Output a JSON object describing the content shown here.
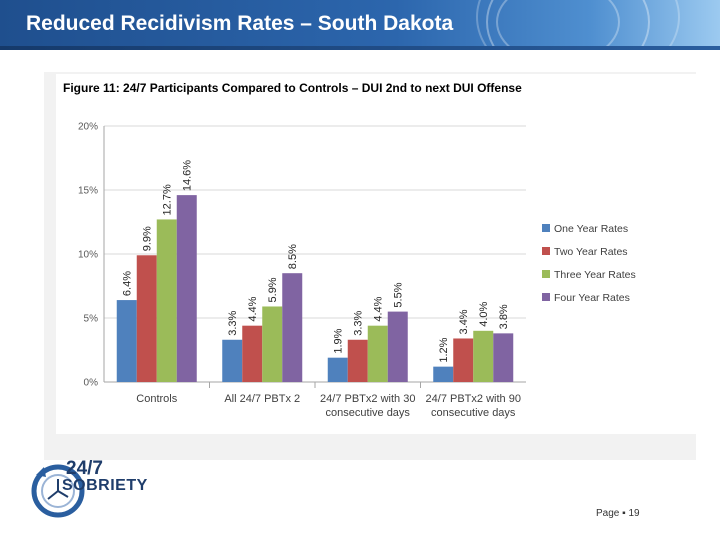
{
  "header": {
    "title": "Reduced Recidivism Rates – South Dakota"
  },
  "chart_data": {
    "type": "bar",
    "title": "Figure 11: 24/7 Participants Compared to Controls – DUI 2nd to next DUI Offense",
    "categories": [
      [
        "Controls"
      ],
      [
        "All 24/7 PBTx 2"
      ],
      [
        "24/7 PBTx2 with 30",
        "consecutive days"
      ],
      [
        "24/7 PBTx2 with 90",
        "consecutive days"
      ]
    ],
    "series": [
      {
        "name": "One Year Rates",
        "color": "#4f81bd",
        "values": [
          6.4,
          3.3,
          1.9,
          1.2
        ],
        "labels": [
          "6.4%",
          "3.3%",
          "1.9%",
          "1.2%"
        ]
      },
      {
        "name": "Two Year Rates",
        "color": "#c0504d",
        "values": [
          9.9,
          4.4,
          3.3,
          3.4
        ],
        "labels": [
          "9.9%",
          "4.4%",
          "3.3%",
          "3.4%"
        ]
      },
      {
        "name": "Three Year Rates",
        "color": "#9bbb59",
        "values": [
          12.7,
          5.9,
          4.4,
          4.0
        ],
        "labels": [
          "12.7%",
          "5.9%",
          "4.4%",
          "4.0%"
        ]
      },
      {
        "name": "Four Year Rates",
        "color": "#8064a2",
        "values": [
          14.6,
          8.5,
          5.5,
          3.8
        ],
        "labels": [
          "14.6%",
          "8.5%",
          "5.5%",
          "3.8%"
        ]
      }
    ],
    "ylim": [
      0,
      20
    ],
    "yticks": [
      0,
      5,
      10,
      15,
      20
    ],
    "ytick_labels": [
      "0%",
      "5%",
      "10%",
      "15%",
      "20%"
    ],
    "grid": true,
    "legend_position": "right"
  },
  "logo": {
    "line1": "24/7",
    "line2": "SOBRIETY"
  },
  "footer": {
    "page_label": "Page ▪ 19"
  }
}
